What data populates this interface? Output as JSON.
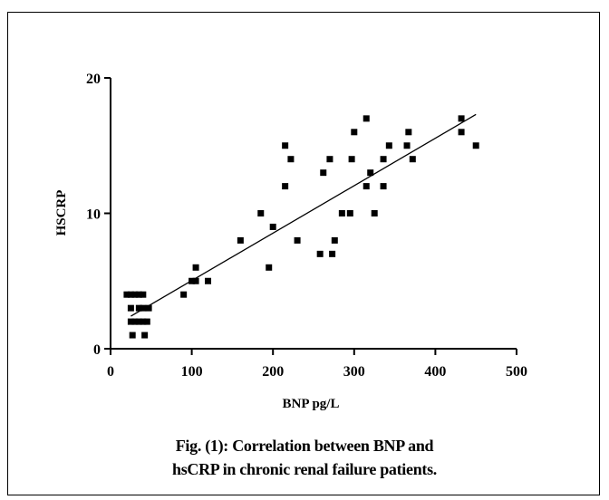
{
  "figure": {
    "caption_line1": "Fig. (1): Correlation between BNP and",
    "caption_line2": "hsCRP in chronic renal failure patients."
  },
  "chart_data": {
    "type": "scatter",
    "title": "",
    "xlabel": "BNP pg/L",
    "ylabel": "HSCRP",
    "xlim": [
      0,
      500
    ],
    "ylim": [
      0,
      20
    ],
    "xticks": [
      0,
      100,
      200,
      300,
      400,
      500
    ],
    "yticks": [
      0,
      10,
      20
    ],
    "marker_color": "#000000",
    "points": [
      [
        20,
        4
      ],
      [
        25,
        4
      ],
      [
        30,
        4
      ],
      [
        35,
        4
      ],
      [
        40,
        4
      ],
      [
        25,
        3
      ],
      [
        35,
        3
      ],
      [
        40,
        3
      ],
      [
        47,
        3
      ],
      [
        25,
        2
      ],
      [
        30,
        2
      ],
      [
        35,
        2
      ],
      [
        40,
        2
      ],
      [
        45,
        2
      ],
      [
        27,
        1
      ],
      [
        42,
        1
      ],
      [
        90,
        4
      ],
      [
        100,
        5
      ],
      [
        105,
        5
      ],
      [
        105,
        6
      ],
      [
        120,
        5
      ],
      [
        160,
        8
      ],
      [
        185,
        10
      ],
      [
        195,
        6
      ],
      [
        200,
        9
      ],
      [
        215,
        15
      ],
      [
        215,
        12
      ],
      [
        222,
        14
      ],
      [
        230,
        8
      ],
      [
        258,
        7
      ],
      [
        262,
        13
      ],
      [
        270,
        14
      ],
      [
        273,
        7
      ],
      [
        276,
        8
      ],
      [
        285,
        10
      ],
      [
        295,
        10
      ],
      [
        297,
        14
      ],
      [
        300,
        16
      ],
      [
        315,
        17
      ],
      [
        315,
        12
      ],
      [
        320,
        13
      ],
      [
        325,
        10
      ],
      [
        336,
        12
      ],
      [
        336,
        14
      ],
      [
        343,
        15
      ],
      [
        365,
        15
      ],
      [
        367,
        16
      ],
      [
        372,
        14
      ],
      [
        432,
        17
      ],
      [
        432,
        16
      ],
      [
        450,
        15
      ]
    ],
    "trend_line": {
      "x": [
        25,
        450
      ],
      "y": [
        2.4,
        17.3
      ]
    }
  }
}
